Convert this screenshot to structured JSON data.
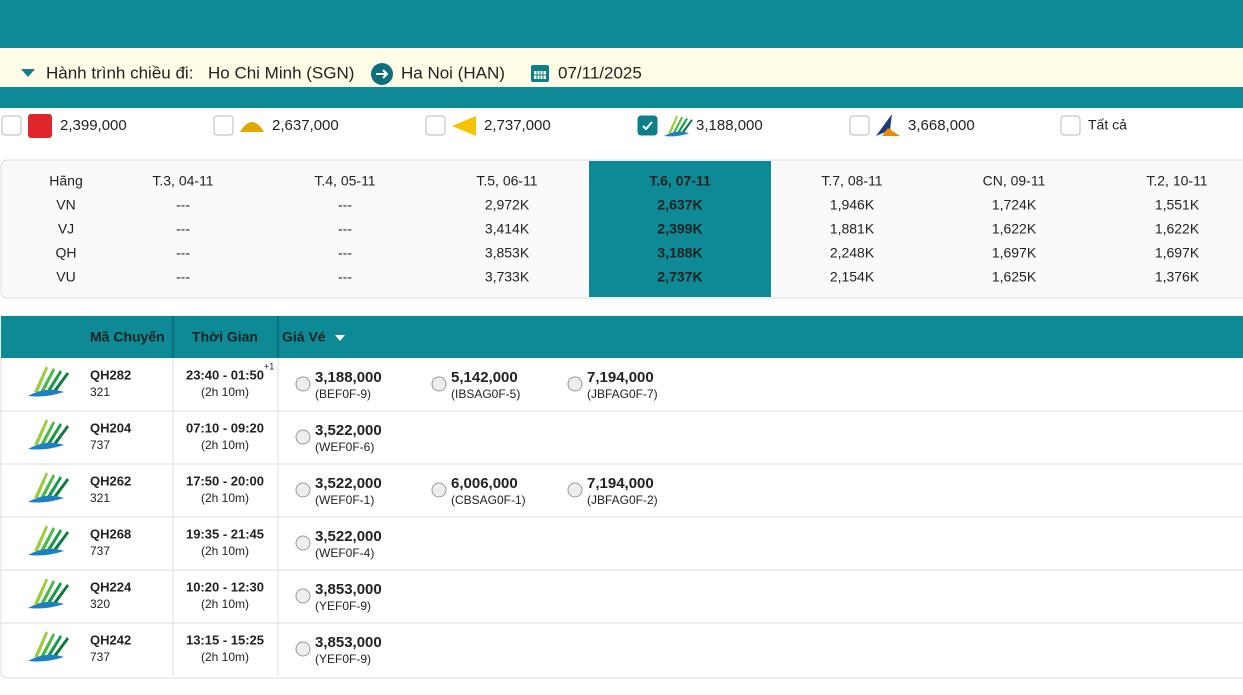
{
  "itinerary": {
    "label": "Hành trình chiều đi:",
    "from": "Ho Chi Minh (SGN)",
    "to": "Ha Noi (HAN)",
    "date": "07/11/2025"
  },
  "airline_filters": [
    {
      "airline": "VJ",
      "price": "2,399,000",
      "checked": false
    },
    {
      "airline": "VN",
      "price": "2,637,000",
      "checked": false
    },
    {
      "airline": "VU",
      "price": "2,737,000",
      "checked": false
    },
    {
      "airline": "QH",
      "price": "3,188,000",
      "checked": true
    },
    {
      "airline": "BL",
      "price": "3,668,000",
      "checked": false
    }
  ],
  "all_filter": {
    "label": "Tất cả",
    "checked": false
  },
  "calendar": {
    "header": [
      "Hãng",
      "T.3, 04-11",
      "T.4, 05-11",
      "T.5, 06-11",
      "T.6, 07-11",
      "T.7, 08-11",
      "CN, 09-11",
      "T.2, 10-11"
    ],
    "selected": 4,
    "rows": [
      {
        "color": "#2a9fc6",
        "cells": [
          "VN",
          "---",
          "---",
          "2,972K",
          "2,637K",
          "1,946K",
          "1,724K",
          "1,551K"
        ]
      },
      {
        "color": "#e0262b",
        "cells": [
          "VJ",
          "---",
          "---",
          "3,414K",
          "2,399K",
          "1,881K",
          "1,622K",
          "1,622K"
        ]
      },
      {
        "color": "#1fa83c",
        "cells": [
          "QH",
          "---",
          "---",
          "3,853K",
          "3,188K",
          "2,248K",
          "1,697K",
          "1,697K"
        ]
      },
      {
        "color": "#f5b90f",
        "cells": [
          "VU",
          "---",
          "---",
          "3,733K",
          "2,737K",
          "2,154K",
          "1,625K",
          "1,376K"
        ]
      }
    ]
  },
  "flights": {
    "columns": [
      "Mã Chuyến",
      "Thời Gian",
      "Giá Vé"
    ],
    "rows": [
      {
        "code": "QH282",
        "aircraft": "321",
        "time": "23:40 - 01:50",
        "next_day": "+1",
        "duration": "(2h 10m)",
        "fares": [
          {
            "price": "3,188,000",
            "class": "(BEF0F-9)"
          },
          {
            "price": "5,142,000",
            "class": "(IBSAG0F-5)"
          },
          {
            "price": "7,194,000",
            "class": "(JBFAG0F-7)"
          }
        ]
      },
      {
        "code": "QH204",
        "aircraft": "737",
        "time": "07:10 - 09:20",
        "duration": "(2h 10m)",
        "fares": [
          {
            "price": "3,522,000",
            "class": "(WEF0F-6)"
          }
        ]
      },
      {
        "code": "QH262",
        "aircraft": "321",
        "time": "17:50 - 20:00",
        "duration": "(2h 10m)",
        "fares": [
          {
            "price": "3,522,000",
            "class": "(WEF0F-1)"
          },
          {
            "price": "6,006,000",
            "class": "(CBSAG0F-1)"
          },
          {
            "price": "7,194,000",
            "class": "(JBFAG0F-2)"
          }
        ]
      },
      {
        "code": "QH268",
        "aircraft": "737",
        "time": "19:35 - 21:45",
        "duration": "(2h 10m)",
        "fares": [
          {
            "price": "3,522,000",
            "class": "(WEF0F-4)"
          }
        ]
      },
      {
        "code": "QH224",
        "aircraft": "320",
        "time": "10:20 - 12:30",
        "duration": "(2h 10m)",
        "fares": [
          {
            "price": "3,853,000",
            "class": "(YEF0F-9)"
          }
        ]
      },
      {
        "code": "QH242",
        "aircraft": "737",
        "time": "13:15 - 15:25",
        "duration": "(2h 10m)",
        "fares": [
          {
            "price": "3,853,000",
            "class": "(YEF0F-9)"
          }
        ]
      }
    ]
  }
}
